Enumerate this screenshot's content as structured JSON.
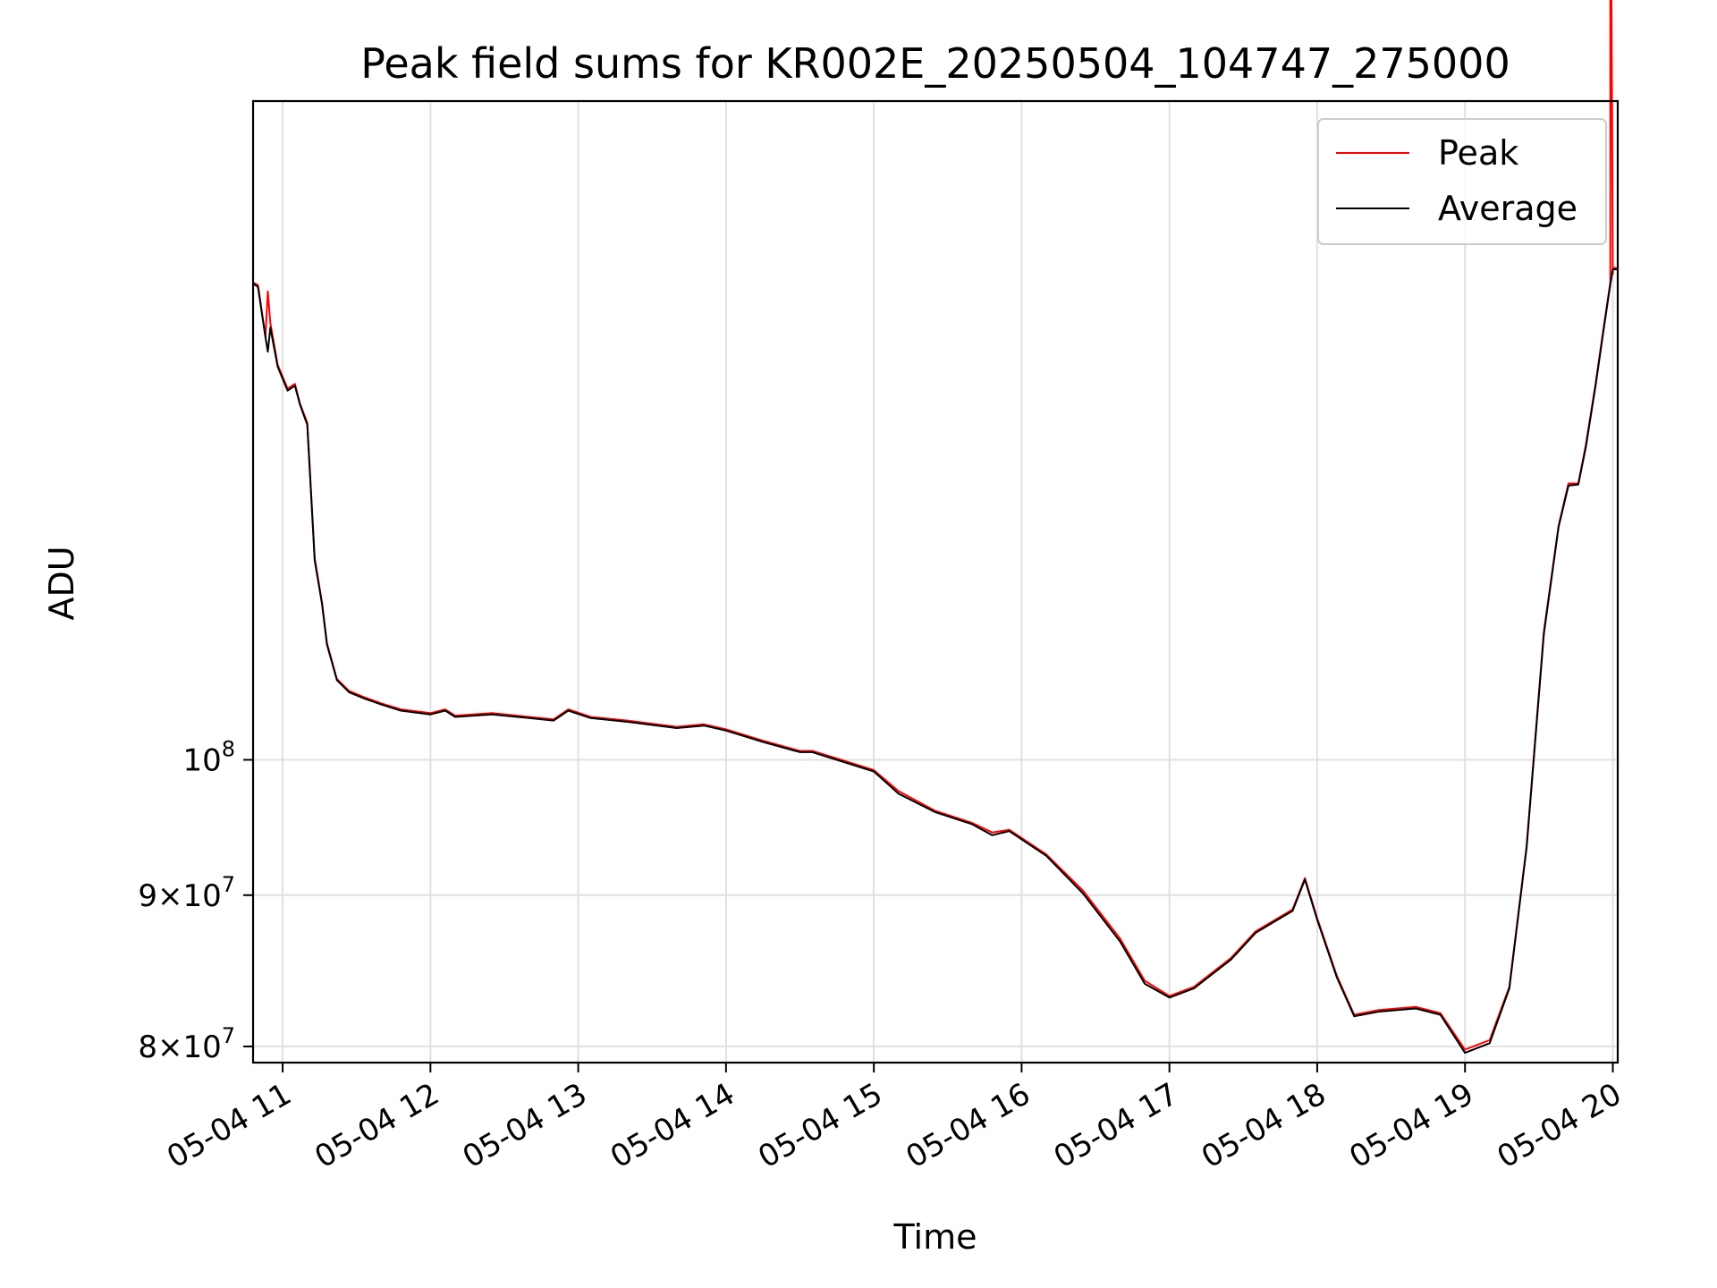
{
  "chart_data": {
    "type": "line",
    "title": "Peak field sums for KR002E_20250504_104747_275000",
    "xlabel": "Time",
    "ylabel": "ADU",
    "yscale": "log",
    "grid": true,
    "legend_position": "top-right",
    "xlim": [
      "2025-05-04 10:48",
      "2025-05-04 20:02"
    ],
    "ylim": [
      79000000,
      167000000
    ],
    "x_ticks": [
      {
        "x": "2025-05-04 11:00",
        "label": "05-04 11"
      },
      {
        "x": "2025-05-04 12:00",
        "label": "05-04 12"
      },
      {
        "x": "2025-05-04 13:00",
        "label": "05-04 13"
      },
      {
        "x": "2025-05-04 14:00",
        "label": "05-04 14"
      },
      {
        "x": "2025-05-04 15:00",
        "label": "05-04 15"
      },
      {
        "x": "2025-05-04 16:00",
        "label": "05-04 16"
      },
      {
        "x": "2025-05-04 17:00",
        "label": "05-04 17"
      },
      {
        "x": "2025-05-04 18:00",
        "label": "05-04 18"
      },
      {
        "x": "2025-05-04 19:00",
        "label": "05-04 19"
      },
      {
        "x": "2025-05-04 20:00",
        "label": "05-04 20"
      }
    ],
    "y_ticks": [
      {
        "value": 80000000,
        "mantissa": "8",
        "exponent": "7"
      },
      {
        "value": 90000000,
        "mantissa": "9",
        "exponent": "7"
      },
      {
        "value": 100000000,
        "mantissa": "",
        "exponent": "8"
      }
    ],
    "series": [
      {
        "name": "Peak",
        "color": "#ff0000",
        "x": [
          "2025-05-04 10:48",
          "2025-05-04 10:50",
          "2025-05-04 10:53",
          "2025-05-04 10:54",
          "2025-05-04 10:55",
          "2025-05-04 10:58",
          "2025-05-04 11:02",
          "2025-05-04 11:05",
          "2025-05-04 11:07",
          "2025-05-04 11:10",
          "2025-05-04 11:13",
          "2025-05-04 11:16",
          "2025-05-04 11:18",
          "2025-05-04 11:22",
          "2025-05-04 11:27",
          "2025-05-04 11:33",
          "2025-05-04 11:40",
          "2025-05-04 11:48",
          "2025-05-04 12:00",
          "2025-05-04 12:06",
          "2025-05-04 12:10",
          "2025-05-04 12:25",
          "2025-05-04 12:40",
          "2025-05-04 12:50",
          "2025-05-04 12:56",
          "2025-05-04 13:05",
          "2025-05-04 13:20",
          "2025-05-04 13:40",
          "2025-05-04 13:51",
          "2025-05-04 14:00",
          "2025-05-04 14:15",
          "2025-05-04 14:30",
          "2025-05-04 14:35",
          "2025-05-04 14:45",
          "2025-05-04 15:00",
          "2025-05-04 15:10",
          "2025-05-04 15:25",
          "2025-05-04 15:40",
          "2025-05-04 15:48",
          "2025-05-04 15:55",
          "2025-05-04 16:10",
          "2025-05-04 16:25",
          "2025-05-04 16:40",
          "2025-05-04 16:50",
          "2025-05-04 17:00",
          "2025-05-04 17:10",
          "2025-05-04 17:25",
          "2025-05-04 17:35",
          "2025-05-04 17:42",
          "2025-05-04 17:50",
          "2025-05-04 17:55",
          "2025-05-04 18:00",
          "2025-05-04 18:08",
          "2025-05-04 18:15",
          "2025-05-04 18:25",
          "2025-05-04 18:40",
          "2025-05-04 18:50",
          "2025-05-04 19:00",
          "2025-05-04 19:10",
          "2025-05-04 19:18",
          "2025-05-04 19:25",
          "2025-05-04 19:32",
          "2025-05-04 19:38",
          "2025-05-04 19:42",
          "2025-05-04 19:46",
          "2025-05-04 19:49",
          "2025-05-04 19:53",
          "2025-05-04 19:56",
          "2025-05-04 19:59",
          "2025-05-04 19:59",
          "2025-05-04 20:00",
          "2025-05-04 20:00",
          "2025-05-04 20:02"
        ],
        "y": [
          145000000,
          144700000,
          139000000,
          144000000,
          140500000,
          136000000,
          133500000,
          134000000,
          132000000,
          130000000,
          117000000,
          113000000,
          109500000,
          106500000,
          105500000,
          105000000,
          104500000,
          104000000,
          103700000,
          104000000,
          103500000,
          103700000,
          103400000,
          103200000,
          104000000,
          103400000,
          103100000,
          102600000,
          102800000,
          102400000,
          101500000,
          100700000,
          100700000,
          100100000,
          99200000,
          97600000,
          96100000,
          95200000,
          94500000,
          94700000,
          92900000,
          90300000,
          87000000,
          84200000,
          83200000,
          83800000,
          85700000,
          87500000,
          88200000,
          89000000,
          91200000,
          88400000,
          84500000,
          82000000,
          82300000,
          82500000,
          82100000,
          79800000,
          80400000,
          83800000,
          93500000,
          110500000,
          120000000,
          124000000,
          124000000,
          127700000,
          134000000,
          139500000,
          145000000,
          220000000,
          146000000,
          146700000,
          146600000
        ]
      },
      {
        "name": "Average",
        "color": "#000000",
        "x": [
          "2025-05-04 10:48",
          "2025-05-04 10:50",
          "2025-05-04 10:53",
          "2025-05-04 10:54",
          "2025-05-04 10:55",
          "2025-05-04 10:58",
          "2025-05-04 11:02",
          "2025-05-04 11:05",
          "2025-05-04 11:07",
          "2025-05-04 11:10",
          "2025-05-04 11:13",
          "2025-05-04 11:16",
          "2025-05-04 11:18",
          "2025-05-04 11:22",
          "2025-05-04 11:27",
          "2025-05-04 11:33",
          "2025-05-04 11:40",
          "2025-05-04 11:48",
          "2025-05-04 12:00",
          "2025-05-04 12:06",
          "2025-05-04 12:10",
          "2025-05-04 12:25",
          "2025-05-04 12:40",
          "2025-05-04 12:50",
          "2025-05-04 12:56",
          "2025-05-04 13:05",
          "2025-05-04 13:20",
          "2025-05-04 13:40",
          "2025-05-04 13:51",
          "2025-05-04 14:00",
          "2025-05-04 14:15",
          "2025-05-04 14:30",
          "2025-05-04 14:35",
          "2025-05-04 14:45",
          "2025-05-04 15:00",
          "2025-05-04 15:10",
          "2025-05-04 15:25",
          "2025-05-04 15:40",
          "2025-05-04 15:48",
          "2025-05-04 15:55",
          "2025-05-04 16:10",
          "2025-05-04 16:25",
          "2025-05-04 16:40",
          "2025-05-04 16:50",
          "2025-05-04 17:00",
          "2025-05-04 17:10",
          "2025-05-04 17:25",
          "2025-05-04 17:35",
          "2025-05-04 17:42",
          "2025-05-04 17:50",
          "2025-05-04 17:55",
          "2025-05-04 18:00",
          "2025-05-04 18:08",
          "2025-05-04 18:15",
          "2025-05-04 18:25",
          "2025-05-04 18:40",
          "2025-05-04 18:50",
          "2025-05-04 19:00",
          "2025-05-04 19:10",
          "2025-05-04 19:18",
          "2025-05-04 19:25",
          "2025-05-04 19:32",
          "2025-05-04 19:38",
          "2025-05-04 19:42",
          "2025-05-04 19:46",
          "2025-05-04 19:49",
          "2025-05-04 19:53",
          "2025-05-04 19:56",
          "2025-05-04 19:59",
          "2025-05-04 20:00",
          "2025-05-04 20:02"
        ],
        "y": [
          144900000,
          144500000,
          139000000,
          137400000,
          140000000,
          135800000,
          133300000,
          133800000,
          131900000,
          129800000,
          116800000,
          112900000,
          109400000,
          106400000,
          105400000,
          104900000,
          104400000,
          103900000,
          103600000,
          103900000,
          103400000,
          103600000,
          103300000,
          103100000,
          103900000,
          103300000,
          103000000,
          102500000,
          102700000,
          102300000,
          101400000,
          100600000,
          100600000,
          100000000,
          99100000,
          97400000,
          96000000,
          95100000,
          94300000,
          94600000,
          92800000,
          90100000,
          86800000,
          84000000,
          83100000,
          83700000,
          85600000,
          87400000,
          88100000,
          88900000,
          91100000,
          88300000,
          84400000,
          81900000,
          82200000,
          82400000,
          82000000,
          79600000,
          80200000,
          83700000,
          93400000,
          110300000,
          119900000,
          123800000,
          123900000,
          127500000,
          133800000,
          139300000,
          144800000,
          146500000,
          146500000
        ]
      }
    ]
  }
}
